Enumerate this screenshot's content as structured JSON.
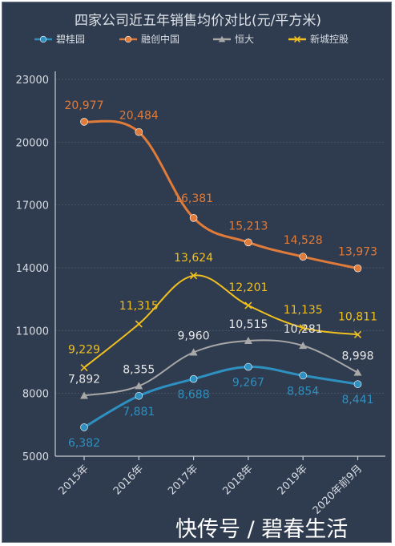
{
  "chart_data": {
    "type": "line",
    "title": "四家公司近五年销售均价对比(元/平方米)",
    "categories": [
      "2015年",
      "2016年",
      "2017年",
      "2018年",
      "2019年",
      "2020年前9月"
    ],
    "ylim": [
      5000,
      23000
    ],
    "yticks": [
      5000,
      8000,
      11000,
      14000,
      17000,
      20000,
      23000
    ],
    "grid": true,
    "legend_position": "top",
    "series": [
      {
        "name": "碧桂园",
        "color": "#2e90c0",
        "marker": "circle",
        "values": [
          6382,
          7881,
          8688,
          9267,
          8854,
          8441
        ],
        "labels": [
          "6,382",
          "7,881",
          "8,688",
          "9,267",
          "8,854",
          "8,441"
        ]
      },
      {
        "name": "融创中国",
        "color": "#e07b39",
        "marker": "circle",
        "values": [
          20977,
          20484,
          16381,
          15213,
          14528,
          13973
        ],
        "labels": [
          "20,977",
          "20,484",
          "16,381",
          "15,213",
          "14,528",
          "13,973"
        ]
      },
      {
        "name": "恒大",
        "color": "#a8a8a8",
        "marker": "triangle",
        "values": [
          7892,
          8355,
          9960,
          10515,
          10281,
          8998
        ],
        "labels": [
          "7,892",
          "8,355",
          "9,960",
          "10,515",
          "10,281",
          "8,998"
        ]
      },
      {
        "name": "新城控股",
        "color": "#f0c020",
        "marker": "x",
        "values": [
          9229,
          11315,
          13624,
          12201,
          11135,
          10811
        ],
        "labels": [
          "9,229",
          "11,315",
          "13,624",
          "12,201",
          "11,135",
          "10,811"
        ]
      }
    ]
  },
  "watermark": "快传号 / 碧春生活"
}
